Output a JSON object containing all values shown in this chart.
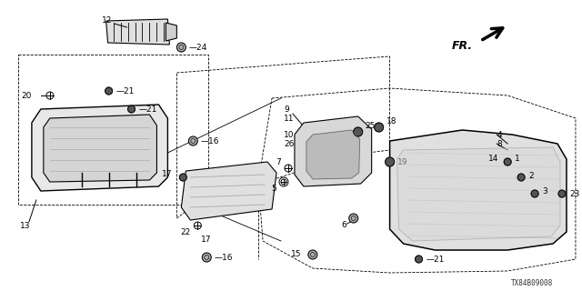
{
  "bg_color": "#ffffff",
  "line_color": "#000000",
  "diagram_code": "TX84B09008",
  "fig_width": 6.4,
  "fig_height": 3.2,
  "dpi": 100
}
